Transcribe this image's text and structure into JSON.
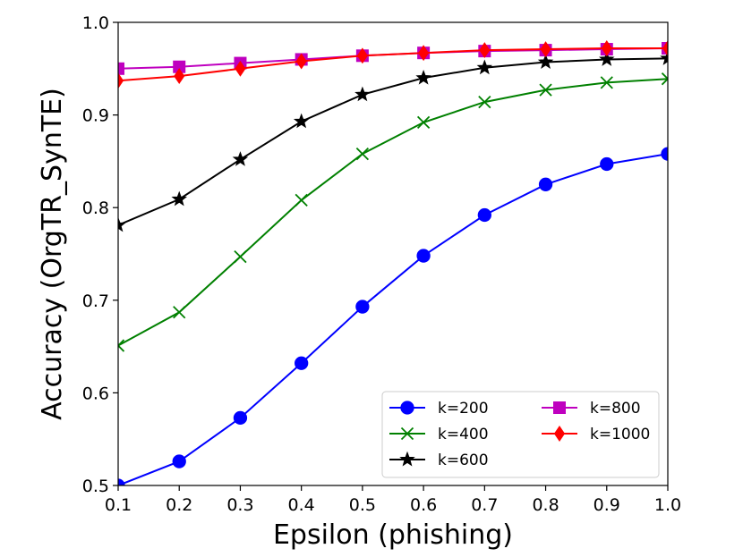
{
  "chart_data": {
    "type": "line",
    "title": "",
    "xlabel": "Epsilon (phishing)",
    "ylabel": "Accuracy (OrgTR_SynTE)",
    "x": [
      0.1,
      0.2,
      0.3,
      0.4,
      0.5,
      0.6,
      0.7,
      0.8,
      0.9,
      1.0
    ],
    "x_tick_labels": [
      "0.1",
      "0.2",
      "0.3",
      "0.4",
      "0.5",
      "0.6",
      "0.7",
      "0.8",
      "0.9",
      "1.0"
    ],
    "y_tick_labels": [
      "0.5",
      "0.6",
      "0.7",
      "0.8",
      "0.9",
      "1.0"
    ],
    "y_ticks": [
      0.5,
      0.6,
      0.7,
      0.8,
      0.9,
      1.0
    ],
    "xlim": [
      0.1,
      1.0
    ],
    "ylim": [
      0.5,
      1.0
    ],
    "grid": false,
    "legend_position": "lower-right",
    "series": [
      {
        "name": "k=200",
        "color": "#0000ff",
        "marker": "circle",
        "values": [
          0.5,
          0.526,
          0.573,
          0.632,
          0.693,
          0.748,
          0.792,
          0.825,
          0.847,
          0.858
        ]
      },
      {
        "name": "k=400",
        "color": "#008000",
        "marker": "x",
        "values": [
          0.651,
          0.687,
          0.747,
          0.808,
          0.858,
          0.892,
          0.914,
          0.927,
          0.935,
          0.939
        ]
      },
      {
        "name": "k=600",
        "color": "#000000",
        "marker": "star",
        "values": [
          0.781,
          0.809,
          0.852,
          0.893,
          0.922,
          0.94,
          0.951,
          0.957,
          0.96,
          0.961
        ]
      },
      {
        "name": "k=800",
        "color": "#bf00bf",
        "marker": "square",
        "values": [
          0.95,
          0.952,
          0.956,
          0.96,
          0.964,
          0.967,
          0.969,
          0.97,
          0.971,
          0.972
        ]
      },
      {
        "name": "k=1000",
        "color": "#ff0000",
        "marker": "diamond",
        "values": [
          0.937,
          0.942,
          0.95,
          0.958,
          0.964,
          0.967,
          0.97,
          0.971,
          0.972,
          0.972
        ]
      }
    ]
  }
}
